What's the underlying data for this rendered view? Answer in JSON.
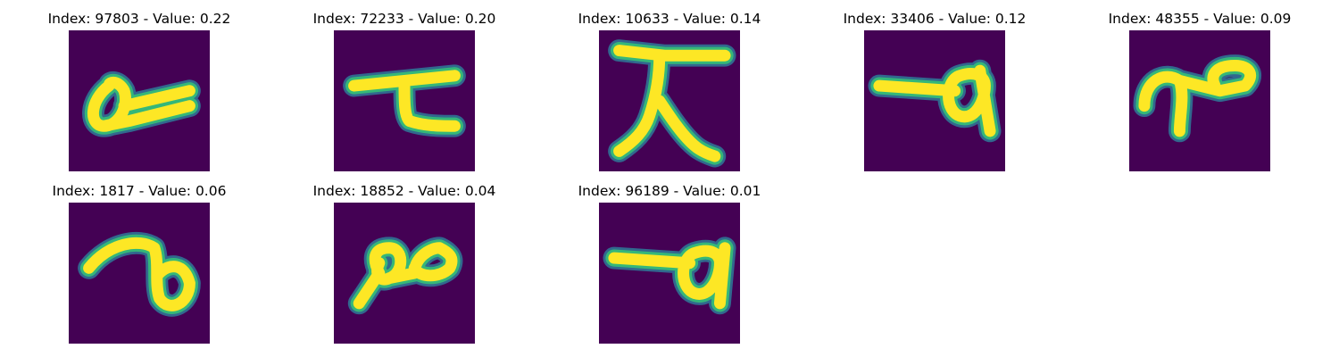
{
  "colors": {
    "background": "#440154",
    "halo_outer": "#31688e",
    "halo_inner": "#35b779",
    "stroke": "#fde725"
  },
  "items": [
    {
      "title": "Index: 97803 - Value: 0.22",
      "icon": "handwritten-glyph-loop-tail-icon"
    },
    {
      "title": "Index: 72233 - Value: 0.20",
      "icon": "handwritten-glyph-hook-icon"
    },
    {
      "title": "Index: 10633 - Value: 0.14",
      "icon": "handwritten-glyph-figure-icon"
    },
    {
      "title": "Index: 33406 - Value: 0.12",
      "icon": "handwritten-glyph-bar-loop-icon"
    },
    {
      "title": "Index: 48355 - Value: 0.09",
      "icon": "handwritten-glyph-curl-loop-icon"
    },
    {
      "title": "Index: 1817 - Value: 0.06",
      "icon": "handwritten-glyph-arc-loop-icon"
    },
    {
      "title": "Index: 18852 - Value: 0.04",
      "icon": "handwritten-glyph-double-loop-icon"
    },
    {
      "title": "Index: 96189 - Value: 0.01",
      "icon": "handwritten-glyph-bar-loop-icon"
    }
  ]
}
